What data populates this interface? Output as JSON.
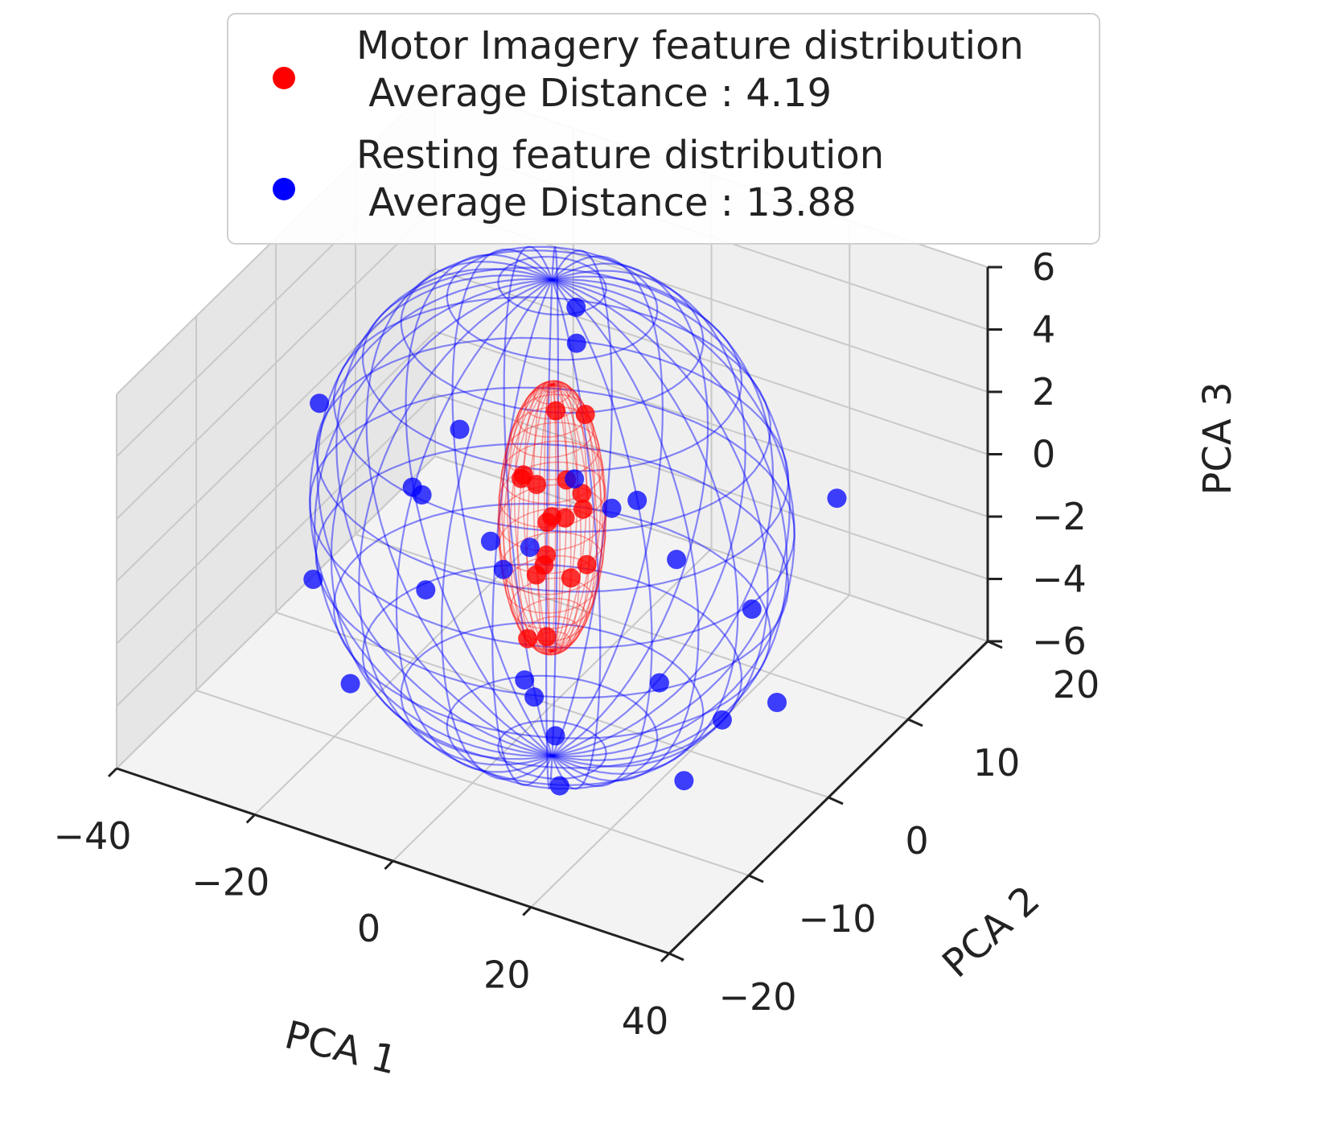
{
  "chart_data": {
    "type": "scatter3d",
    "axes": {
      "x": {
        "label": "PCA 1",
        "ticks": [
          "−40",
          "−20",
          "0",
          "20",
          "40"
        ],
        "range": [
          -40,
          40
        ]
      },
      "y": {
        "label": "PCA 2",
        "ticks": [
          "−20",
          "−10",
          "0",
          "10",
          "20"
        ],
        "range": [
          -20,
          20
        ]
      },
      "z": {
        "label": "PCA 3",
        "ticks": [
          "−6",
          "−4",
          "−2",
          "0",
          "2",
          "4",
          "6"
        ],
        "range": [
          -6,
          6
        ]
      }
    },
    "grid": true,
    "legend": {
      "placement": "top-center",
      "entries": [
        {
          "line1": "Motor Imagery feature distribution",
          "line2": " Average Distance : 4.19",
          "color": "#ff0000"
        },
        {
          "line1": "Resting feature distribution",
          "line2": " Average Distance : 13.88",
          "color": "#0000ff"
        }
      ]
    },
    "series": [
      {
        "name": "Motor Imagery feature distribution",
        "color": "#ff0000",
        "average_distance": 4.19,
        "ellipsoid_radii": [
          4.19,
          4.19,
          4.19
        ],
        "points": [
          [
            1.5,
            0.5,
            1.2
          ],
          [
            2.8,
            -0.8,
            0.4
          ],
          [
            -2.1,
            1.2,
            -0.6
          ],
          [
            0.4,
            2.0,
            -2.4
          ],
          [
            -3.0,
            -1.0,
            1.4
          ],
          [
            3.4,
            1.4,
            -1.6
          ],
          [
            -1.0,
            -2.2,
            -3.4
          ],
          [
            1.8,
            2.6,
            2.8
          ],
          [
            -2.6,
            0.3,
            0.8
          ],
          [
            0.9,
            -1.8,
            -1.0
          ],
          [
            -0.4,
            0.8,
            3.2
          ],
          [
            2.2,
            -2.6,
            -3.0
          ],
          [
            -3.4,
            2.2,
            -2.0
          ],
          [
            0.2,
            -0.2,
            0.1
          ],
          [
            3.6,
            0.6,
            0.9
          ],
          [
            -1.6,
            -0.6,
            -1.8
          ],
          [
            1.0,
            3.0,
            -0.4
          ],
          [
            -0.8,
            -3.2,
            2.0
          ]
        ]
      },
      {
        "name": "Resting feature distribution",
        "color": "#0000ff",
        "average_distance": 13.88,
        "ellipsoid_radii": [
          13.88,
          13.88,
          13.88
        ],
        "points": [
          [
            -36,
            2,
            0.5
          ],
          [
            36,
            -3,
            -2.5
          ],
          [
            0,
            3,
            6.0
          ],
          [
            -4,
            0,
            -5.5
          ],
          [
            8,
            -6,
            -6.5
          ],
          [
            4,
            10,
            -7.5
          ],
          [
            -18,
            4,
            0.5
          ],
          [
            -20,
            1,
            -1.0
          ],
          [
            -26,
            5,
            -2.2
          ],
          [
            -16,
            -2,
            -3.0
          ],
          [
            -30,
            -4,
            -3.2
          ],
          [
            -14,
            6,
            -4.2
          ],
          [
            -20,
            -8,
            -4.8
          ],
          [
            18,
            0,
            0.0
          ],
          [
            22,
            6,
            -2.8
          ],
          [
            26,
            -6,
            -5.0
          ],
          [
            20,
            4,
            -6.0
          ],
          [
            32,
            8,
            1.0
          ],
          [
            -8,
            10,
            2.5
          ],
          [
            6,
            -8,
            1.5
          ],
          [
            -6,
            8,
            -1.2
          ],
          [
            2,
            -4,
            -4.6
          ],
          [
            10,
            2,
            0.8
          ],
          [
            -2,
            -6,
            0.6
          ],
          [
            4,
            4,
            -0.4
          ],
          [
            12,
            -10,
            -3.6
          ]
        ]
      }
    ]
  }
}
